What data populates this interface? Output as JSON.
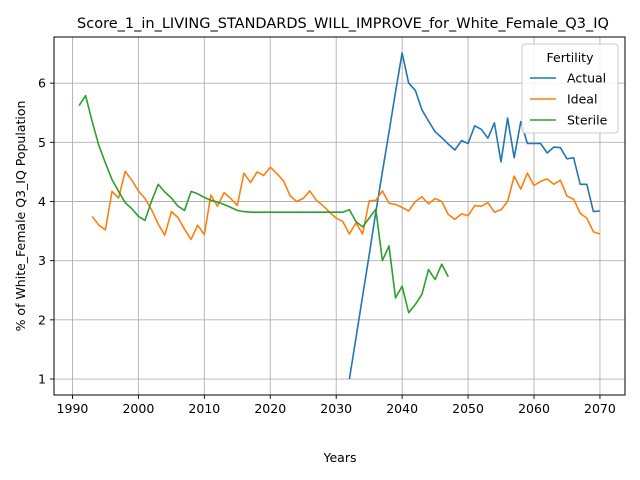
{
  "chart_data": {
    "type": "line",
    "title": "Score_1_in_LIVING_STANDARDS_WILL_IMPROVE_for_White_Female_Q3_IQ",
    "xlabel": "Years",
    "ylabel": "% of White_Female Q3_IQ Population",
    "xlim": [
      1987.2,
      2073.8
    ],
    "ylim": [
      0.73,
      6.78
    ],
    "xticks": [
      1990,
      2000,
      2010,
      2020,
      2030,
      2040,
      2050,
      2060,
      2070
    ],
    "yticks": [
      1,
      2,
      3,
      4,
      5,
      6
    ],
    "grid": true,
    "legend": {
      "title": "Fertility",
      "position": "top-right"
    },
    "series": [
      {
        "name": "Actual",
        "color": "#1f77b4",
        "x": [
          2032,
          2033,
          2034,
          2035,
          2036,
          2037,
          2038,
          2039,
          2040,
          2041,
          2042,
          2043,
          2044,
          2045,
          2046,
          2047,
          2048,
          2049,
          2050,
          2051,
          2052,
          2053,
          2054,
          2055,
          2056,
          2057,
          2058,
          2059,
          2060,
          2061,
          2062,
          2063,
          2064,
          2065,
          2066,
          2067,
          2068,
          2069,
          2070
        ],
        "y": [
          1.0,
          1.7,
          2.4,
          3.1,
          3.82,
          4.5,
          5.17,
          5.85,
          6.51,
          6.0,
          5.88,
          5.55,
          5.36,
          5.18,
          5.08,
          4.97,
          4.87,
          5.03,
          4.98,
          5.28,
          5.22,
          5.07,
          5.33,
          4.67,
          5.41,
          4.74,
          5.35,
          4.98,
          4.98,
          4.98,
          4.82,
          4.92,
          4.91,
          4.72,
          4.74,
          4.29,
          4.29,
          3.83,
          3.84
        ]
      },
      {
        "name": "Ideal",
        "color": "#ff7f0e",
        "x": [
          1993,
          1994,
          1995,
          1996,
          1997,
          1998,
          1999,
          2000,
          2001,
          2002,
          2003,
          2004,
          2005,
          2006,
          2007,
          2008,
          2009,
          2010,
          2011,
          2012,
          2013,
          2014,
          2015,
          2016,
          2017,
          2018,
          2019,
          2020,
          2021,
          2022,
          2023,
          2024,
          2025,
          2026,
          2027,
          2028,
          2029,
          2030,
          2031,
          2032,
          2033,
          2034,
          2035,
          2036,
          2037,
          2038,
          2039,
          2040,
          2041,
          2042,
          2043,
          2044,
          2045,
          2046,
          2047,
          2048,
          2049,
          2050,
          2051,
          2052,
          2053,
          2054,
          2055,
          2056,
          2057,
          2058,
          2059,
          2060,
          2061,
          2062,
          2063,
          2064,
          2065,
          2066,
          2067,
          2068,
          2069,
          2070
        ],
        "y": [
          3.75,
          3.6,
          3.52,
          4.17,
          4.06,
          4.51,
          4.36,
          4.18,
          4.05,
          3.86,
          3.62,
          3.43,
          3.83,
          3.73,
          3.53,
          3.36,
          3.6,
          3.44,
          4.11,
          3.92,
          4.15,
          4.05,
          3.93,
          4.48,
          4.32,
          4.5,
          4.44,
          4.58,
          4.47,
          4.35,
          4.1,
          4.0,
          4.05,
          4.18,
          4.02,
          3.93,
          3.82,
          3.72,
          3.66,
          3.45,
          3.64,
          3.45,
          4.01,
          4.02,
          4.18,
          3.97,
          3.95,
          3.9,
          3.84,
          4.0,
          4.08,
          3.96,
          4.05,
          4.0,
          3.78,
          3.7,
          3.79,
          3.76,
          3.93,
          3.92,
          3.98,
          3.82,
          3.86,
          4.0,
          4.43,
          4.21,
          4.48,
          4.27,
          4.34,
          4.38,
          4.29,
          4.36,
          4.09,
          4.04,
          3.8,
          3.72,
          3.49,
          3.45
        ]
      },
      {
        "name": "Sterile",
        "color": "#2ca02c",
        "x": [
          1991,
          1992,
          1993,
          1994,
          1995,
          1996,
          1997,
          1998,
          1999,
          2000,
          2001,
          2002,
          2003,
          2004,
          2005,
          2006,
          2007,
          2008,
          2009,
          2010,
          2011,
          2012,
          2013,
          2014,
          2015,
          2016,
          2017,
          2018,
          2019,
          2020,
          2021,
          2022,
          2023,
          2024,
          2025,
          2026,
          2027,
          2028,
          2029,
          2030,
          2031,
          2032,
          2033,
          2034,
          2035,
          2036,
          2037,
          2038,
          2039,
          2040,
          2041,
          2042,
          2043,
          2044,
          2045,
          2046,
          2047
        ],
        "y": [
          5.62,
          5.79,
          5.35,
          4.95,
          4.65,
          4.37,
          4.17,
          3.98,
          3.88,
          3.75,
          3.68,
          4.01,
          4.29,
          4.16,
          4.06,
          3.92,
          3.85,
          4.17,
          4.13,
          4.07,
          4.02,
          3.99,
          3.95,
          3.9,
          3.85,
          3.83,
          3.82,
          3.82,
          3.82,
          3.82,
          3.82,
          3.82,
          3.82,
          3.82,
          3.82,
          3.82,
          3.82,
          3.82,
          3.82,
          3.82,
          3.82,
          3.86,
          3.66,
          3.57,
          3.72,
          3.87,
          3.0,
          3.25,
          2.37,
          2.57,
          2.12,
          2.26,
          2.43,
          2.85,
          2.68,
          2.94,
          2.73
        ]
      }
    ]
  }
}
